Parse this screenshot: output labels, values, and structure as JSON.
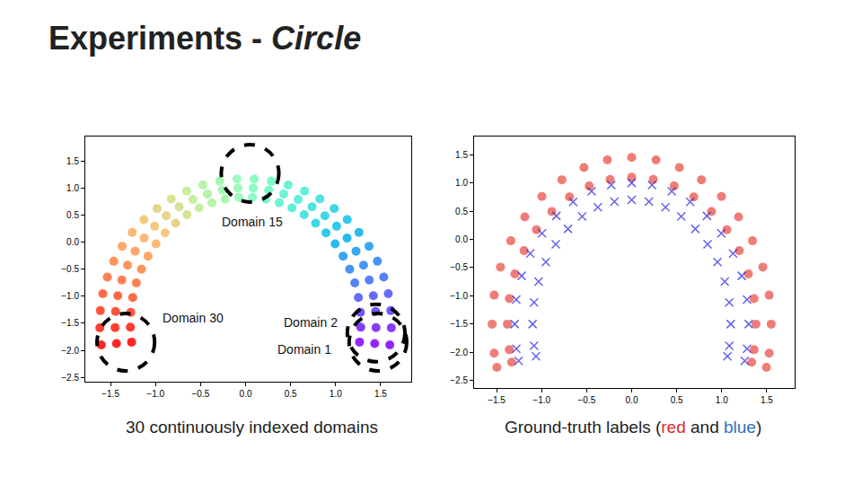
{
  "title_parts": [
    {
      "text": "Experiments - "
    },
    {
      "text": "Circle",
      "style": "italic"
    }
  ],
  "chart_data": [
    {
      "type": "scatter",
      "caption_parts": [
        {
          "text": "30 continuously indexed domains"
        }
      ],
      "x": [
        1.434,
        1.602,
        1.266,
        1.449,
        1.619,
        1.279,
        1.444,
        1.613,
        1.275,
        1.419,
        1.585,
        1.253,
        1.374,
        1.535,
        1.213,
        1.31,
        1.464,
        1.156,
        1.227,
        1.371,
        1.083,
        1.127,
        1.259,
        0.995,
        1.011,
        1.129,
        0.893,
        0.881,
        0.984,
        0.778,
        0.738,
        0.825,
        0.651,
        0.585,
        0.654,
        0.516,
        0.424,
        0.474,
        0.374,
        0.257,
        0.287,
        0.227,
        0.086,
        0.096,
        0.076,
        -0.086,
        -0.096,
        -0.076,
        -0.257,
        -0.287,
        -0.227,
        -0.424,
        -0.474,
        -0.374,
        -0.585,
        -0.654,
        -0.516,
        -0.738,
        -0.825,
        -0.651,
        -0.881,
        -0.984,
        -0.778,
        -1.011,
        -1.129,
        -0.893,
        -1.127,
        -1.259,
        -0.995,
        -1.227,
        -1.371,
        -1.083,
        -1.31,
        -1.464,
        -1.156,
        -1.374,
        -1.535,
        -1.213,
        -1.419,
        -1.585,
        -1.253,
        -1.444,
        -1.613,
        -1.275,
        -1.449,
        -1.619,
        -1.279,
        -1.434,
        -1.602,
        -1.266
      ],
      "y": [
        -1.874,
        -1.9,
        -1.848,
        -1.579,
        -1.584,
        -1.574,
        -1.282,
        -1.267,
        -1.297,
        -0.99,
        -0.955,
        -1.025,
        -0.702,
        -0.648,
        -0.756,
        -0.427,
        -0.354,
        -0.5,
        -0.168,
        -0.077,
        -0.259,
        0.073,
        0.18,
        -0.034,
        0.293,
        0.415,
        0.171,
        0.485,
        0.62,
        0.35,
        0.652,
        0.798,
        0.506,
        0.787,
        0.943,
        0.631,
        0.89,
        1.053,
        0.727,
        0.96,
        1.127,
        0.793,
        0.995,
        1.165,
        0.825,
        0.995,
        1.165,
        0.825,
        0.96,
        1.127,
        0.793,
        0.89,
        1.053,
        0.727,
        0.787,
        0.943,
        0.631,
        0.652,
        0.798,
        0.506,
        0.485,
        0.62,
        0.35,
        0.293,
        0.415,
        0.171,
        0.073,
        0.18,
        -0.034,
        -0.168,
        -0.077,
        -0.259,
        -0.427,
        -0.354,
        -0.5,
        -0.702,
        -0.648,
        -0.756,
        -0.99,
        -0.955,
        -1.025,
        -1.282,
        -1.267,
        -1.297,
        -1.579,
        -1.584,
        -1.574,
        -1.874,
        -1.9,
        -1.848
      ],
      "domain": [
        1,
        1,
        1,
        2,
        2,
        2,
        3,
        3,
        3,
        4,
        4,
        4,
        5,
        5,
        5,
        6,
        6,
        6,
        7,
        7,
        7,
        8,
        8,
        8,
        9,
        9,
        9,
        10,
        10,
        10,
        11,
        11,
        11,
        12,
        12,
        12,
        13,
        13,
        13,
        14,
        14,
        14,
        15,
        15,
        15,
        16,
        16,
        16,
        17,
        17,
        17,
        18,
        18,
        18,
        19,
        19,
        19,
        20,
        20,
        20,
        21,
        21,
        21,
        22,
        22,
        22,
        23,
        23,
        23,
        24,
        24,
        24,
        25,
        25,
        25,
        26,
        26,
        26,
        27,
        27,
        27,
        28,
        28,
        28,
        29,
        29,
        29,
        30,
        30,
        30
      ],
      "annotations": [
        {
          "text": "Domain 15",
          "x": 0.07,
          "y": 0.38
        },
        {
          "text": "Domain 30",
          "x": -0.58,
          "y": -1.4
        },
        {
          "text": "Domain 2",
          "x": 0.72,
          "y": -1.48
        },
        {
          "text": "Domain 1",
          "x": 0.65,
          "y": -1.98
        }
      ],
      "xlim": [
        -1.78,
        1.84
      ],
      "ylim": [
        -2.58,
        1.95
      ],
      "xticks": [
        {
          "value": -1.5,
          "label": "−1.5"
        },
        {
          "value": -1,
          "label": "−1.0"
        },
        {
          "value": -0.5,
          "label": "−0.5"
        },
        {
          "value": 0,
          "label": "0.0"
        },
        0.5,
        {
          "value": 1,
          "label": "1.0"
        },
        1.5
      ],
      "yticks": [
        {
          "value": -2.5,
          "label": "−2.5"
        },
        {
          "value": -2,
          "label": "−2.0"
        },
        {
          "value": -1.5,
          "label": "−1.5"
        },
        {
          "value": -1,
          "label": "−1.0"
        },
        {
          "value": -0.5,
          "label": "−0.5"
        },
        {
          "value": 0,
          "label": "0.0"
        },
        0.5,
        {
          "value": 1,
          "label": "1.0"
        },
        1.5
      ],
      "grid": false
    },
    {
      "type": "scatter",
      "caption_parts": [
        {
          "text": "Ground-truth labels ("
        },
        {
          "text": "red",
          "color": "#e02a2a"
        },
        {
          "text": " and "
        },
        {
          "text": "blue",
          "color": "#2f6fc0"
        },
        {
          "text": ")"
        }
      ],
      "series": [
        {
          "color": "#e8463c",
          "marker": "circle",
          "x": [
            1.497,
            1.527,
            1.55,
            1.527,
            1.457,
            1.342,
            1.187,
            0.997,
            0.775,
            0.53,
            0.27,
            0,
            -0.27,
            -0.53,
            -0.775,
            -0.997,
            -1.187,
            -1.342,
            -1.457,
            -1.527,
            -1.55,
            -1.527,
            -1.497,
            1.333,
            1.359,
            1.38,
            1.359,
            1.297,
            1.195,
            1.057,
            0.887,
            0.69,
            0.472,
            0.24,
            0,
            -0.24,
            -0.472,
            -0.69,
            -0.887,
            -1.057,
            -1.195,
            -1.297,
            -1.359,
            -1.38,
            -1.359,
            -1.333
          ],
          "y": [
            -2.264,
            -2.013,
            -1.5,
            -0.987,
            -0.491,
            -0.025,
            0.397,
            0.76,
            1.055,
            1.273,
            1.406,
            1.45,
            1.406,
            1.273,
            1.055,
            0.76,
            0.397,
            -0.025,
            -0.491,
            -0.987,
            -1.5,
            -2.013,
            -2.264,
            -2.173,
            -1.952,
            -1.5,
            -1.048,
            -0.611,
            -0.2,
            0.172,
            0.492,
            0.752,
            0.944,
            1.061,
            1.1,
            1.061,
            0.944,
            0.752,
            0.492,
            0.172,
            -0.2,
            -0.611,
            -1.048,
            -1.5,
            -1.952,
            -2.173
          ]
        },
        {
          "color": "#2222dd",
          "marker": "x",
          "x": [
            1.256,
            1.281,
            1.3,
            1.281,
            1.222,
            1.126,
            0.996,
            0.836,
            0.65,
            0.445,
            0.226,
            0,
            -0.226,
            -0.445,
            -0.65,
            -0.836,
            -0.996,
            -1.126,
            -1.222,
            -1.281,
            -1.3,
            -1.281,
            -1.256,
            1.063,
            1.084,
            1.1,
            1.084,
            1.034,
            0.953,
            0.843,
            0.707,
            0.55,
            0.376,
            0.191,
            0,
            -0.191,
            -0.376,
            -0.55,
            -0.707,
            -0.843,
            -0.953,
            -1.034,
            -1.084,
            -1.1,
            -1.084,
            -1.063
          ],
          "y": [
            -2.148,
            -1.935,
            -1.5,
            -1.065,
            -0.645,
            -0.25,
            0.108,
            0.415,
            0.665,
            0.85,
            0.963,
            1.0,
            0.963,
            0.85,
            0.665,
            0.415,
            0.108,
            -0.25,
            -0.645,
            -1.065,
            -1.5,
            -1.935,
            -2.148,
            -2.07,
            -1.883,
            -1.5,
            -1.117,
            -0.748,
            -0.4,
            -0.086,
            0.185,
            0.405,
            0.568,
            0.667,
            0.7,
            0.667,
            0.568,
            0.405,
            0.185,
            -0.086,
            -0.4,
            -0.748,
            -1.117,
            -1.5,
            -1.883,
            -2.07
          ]
        }
      ],
      "xlim": [
        -1.75,
        1.81
      ],
      "ylim": [
        -2.63,
        1.82
      ],
      "xticks": [
        {
          "value": -1.5,
          "label": "−1.5"
        },
        {
          "value": -1,
          "label": "−1.0"
        },
        {
          "value": -0.5,
          "label": "−0.5"
        },
        {
          "value": 0,
          "label": "0.0"
        },
        0.5,
        {
          "value": 1,
          "label": "1.0"
        },
        1.5
      ],
      "yticks": [
        {
          "value": -2.5,
          "label": "−2.5"
        },
        {
          "value": -2,
          "label": "−2.0"
        },
        {
          "value": -1.5,
          "label": "−1.5"
        },
        {
          "value": -1,
          "label": "−1.0"
        },
        {
          "value": -0.5,
          "label": "−0.5"
        },
        {
          "value": 0,
          "label": "0.0"
        },
        0.5,
        {
          "value": 1,
          "label": "1.0"
        },
        1.5
      ],
      "grid": false
    }
  ]
}
